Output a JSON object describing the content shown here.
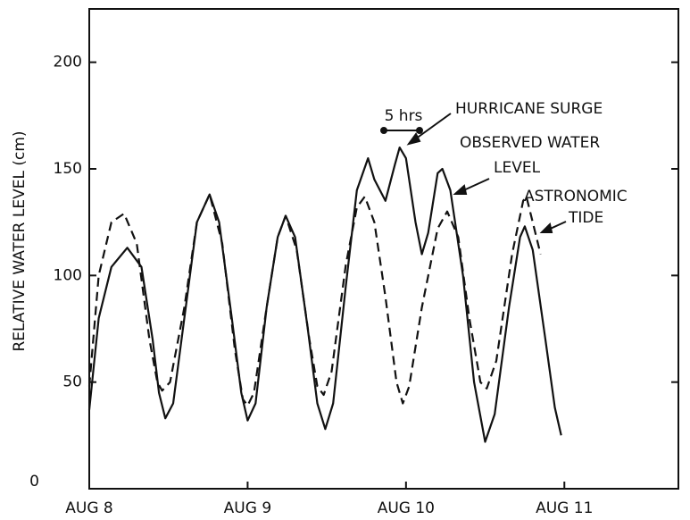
{
  "chart_data": {
    "type": "line",
    "y_label": "RELATIVE WATER LEVEL (cm)",
    "xlim": [
      0,
      3.72
    ],
    "ylim": [
      0,
      225
    ],
    "xticks": [
      {
        "value": 0,
        "label": "AUG 8"
      },
      {
        "value": 1,
        "label": "AUG 9"
      },
      {
        "value": 2,
        "label": "AUG 10"
      },
      {
        "value": 3,
        "label": "AUG 11"
      }
    ],
    "yticks": [
      0,
      50,
      100,
      150,
      200
    ],
    "annotations": [
      "5 hrs",
      "HURRICANE SURGE",
      "OBSERVED WATER",
      "LEVEL",
      "ASTRONOMIC",
      "TIDE"
    ],
    "series": [
      {
        "color": "#111111",
        "dash": false,
        "x": [
          0,
          0.06,
          0.14,
          0.24,
          0.33,
          0.4,
          0.44,
          0.48,
          0.53,
          0.6,
          0.68,
          0.76,
          0.82,
          0.9,
          0.96,
          1.0,
          1.05,
          1.12,
          1.19,
          1.24,
          1.3,
          1.38,
          1.44,
          1.49,
          1.54,
          1.62,
          1.69,
          1.76,
          1.8,
          1.87,
          1.93,
          1.96,
          2.0,
          2.06,
          2.1,
          2.14,
          2.2,
          2.23,
          2.28,
          2.36,
          2.43,
          2.5,
          2.56,
          2.65,
          2.72,
          2.75,
          2.8,
          2.88,
          2.94,
          2.98
        ],
        "values": [
          37,
          80,
          104,
          113,
          104,
          70,
          45,
          33,
          40,
          80,
          125,
          138,
          125,
          80,
          45,
          32,
          40,
          85,
          118,
          128,
          118,
          75,
          40,
          28,
          40,
          95,
          140,
          155,
          145,
          135,
          152,
          160,
          155,
          125,
          110,
          120,
          148,
          150,
          140,
          100,
          50,
          22,
          35,
          85,
          118,
          123,
          112,
          70,
          38,
          25
        ]
      },
      {
        "color": "#111111",
        "dash": true,
        "x": [
          0,
          0.06,
          0.14,
          0.22,
          0.3,
          0.38,
          0.43,
          0.46,
          0.51,
          0.6,
          0.68,
          0.76,
          0.84,
          0.92,
          0.97,
          1.0,
          1.04,
          1.12,
          1.19,
          1.24,
          1.31,
          1.39,
          1.44,
          1.48,
          1.53,
          1.62,
          1.69,
          1.74,
          1.8,
          1.87,
          1.94,
          1.98,
          2.02,
          2.1,
          2.2,
          2.26,
          2.33,
          2.4,
          2.47,
          2.51,
          2.57,
          2.67,
          2.74,
          2.76,
          2.8,
          2.85
        ],
        "values": [
          48,
          100,
          125,
          129,
          115,
          70,
          50,
          46,
          50,
          85,
          125,
          138,
          115,
          65,
          42,
          39,
          45,
          85,
          118,
          128,
          112,
          70,
          48,
          44,
          55,
          105,
          132,
          137,
          125,
          90,
          50,
          40,
          48,
          85,
          122,
          130,
          118,
          80,
          50,
          47,
          60,
          110,
          135,
          137,
          125,
          110
        ]
      }
    ]
  }
}
